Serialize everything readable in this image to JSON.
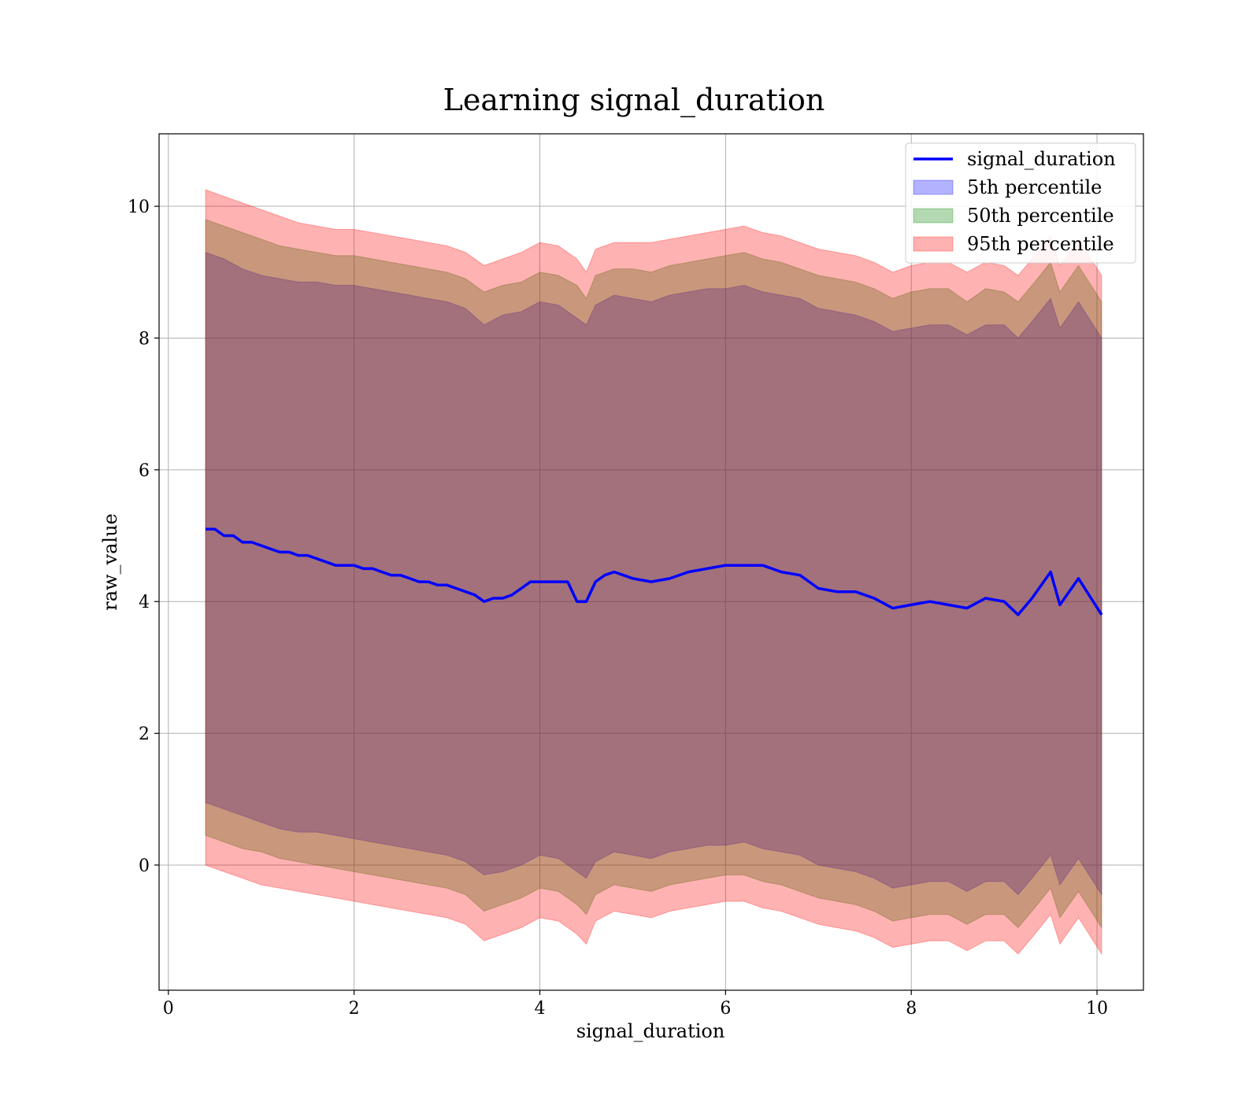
{
  "chart_data": {
    "type": "line",
    "title": "Learning signal_duration",
    "xlabel": "signal_duration",
    "ylabel": "raw_value",
    "xlim": [
      -0.1,
      10.5
    ],
    "ylim": [
      -1.9,
      11.1
    ],
    "xticks": [
      0,
      2,
      4,
      6,
      8,
      10
    ],
    "yticks": [
      0,
      2,
      4,
      6,
      8,
      10
    ],
    "grid": true,
    "legend_position": "top-right",
    "colors": {
      "line": "#0000ff",
      "p5": "#0000ff",
      "p50": "#008000",
      "p95": "#ff0000"
    },
    "legend": [
      "signal_duration",
      "5th percentile",
      "50th percentile",
      "95th percentile"
    ],
    "series": [
      {
        "name": "signal_duration",
        "x": [
          0.4,
          0.5,
          0.6,
          0.7,
          0.8,
          0.9,
          1.0,
          1.1,
          1.2,
          1.3,
          1.4,
          1.5,
          1.6,
          1.7,
          1.8,
          1.9,
          2.0,
          2.1,
          2.2,
          2.3,
          2.4,
          2.5,
          2.6,
          2.7,
          2.8,
          2.9,
          3.0,
          3.1,
          3.2,
          3.3,
          3.4,
          3.5,
          3.6,
          3.7,
          3.8,
          3.9,
          4.0,
          4.1,
          4.2,
          4.3,
          4.4,
          4.5,
          4.6,
          4.7,
          4.8,
          4.9,
          5.0,
          5.2,
          5.4,
          5.6,
          5.8,
          6.0,
          6.2,
          6.4,
          6.6,
          6.8,
          7.0,
          7.2,
          7.4,
          7.6,
          7.8,
          8.0,
          8.2,
          8.4,
          8.6,
          8.8,
          9.0,
          9.15,
          9.3,
          9.5,
          9.6,
          9.8,
          10.05
        ],
        "values": [
          5.1,
          5.1,
          5.0,
          5.0,
          4.9,
          4.9,
          4.85,
          4.8,
          4.75,
          4.75,
          4.7,
          4.7,
          4.65,
          4.6,
          4.55,
          4.55,
          4.55,
          4.5,
          4.5,
          4.45,
          4.4,
          4.4,
          4.35,
          4.3,
          4.3,
          4.25,
          4.25,
          4.2,
          4.15,
          4.1,
          4.0,
          4.05,
          4.05,
          4.1,
          4.2,
          4.3,
          4.3,
          4.3,
          4.3,
          4.3,
          4.0,
          4.0,
          4.3,
          4.4,
          4.45,
          4.4,
          4.35,
          4.3,
          4.35,
          4.45,
          4.5,
          4.55,
          4.55,
          4.55,
          4.45,
          4.4,
          4.2,
          4.15,
          4.15,
          4.05,
          3.9,
          3.95,
          4.0,
          3.95,
          3.9,
          4.05,
          4.0,
          3.8,
          4.05,
          4.45,
          3.95,
          4.35,
          3.8
        ]
      },
      {
        "name": "5th percentile",
        "x": [
          0.4,
          0.6,
          0.8,
          1.0,
          1.2,
          1.4,
          1.6,
          1.8,
          2.0,
          2.2,
          2.4,
          2.6,
          2.8,
          3.0,
          3.2,
          3.4,
          3.6,
          3.8,
          4.0,
          4.2,
          4.4,
          4.5,
          4.6,
          4.8,
          5.0,
          5.2,
          5.4,
          5.6,
          5.8,
          6.0,
          6.2,
          6.4,
          6.6,
          6.8,
          7.0,
          7.2,
          7.4,
          7.6,
          7.8,
          8.0,
          8.2,
          8.4,
          8.6,
          8.8,
          9.0,
          9.15,
          9.3,
          9.5,
          9.6,
          9.8,
          10.05
        ],
        "upper": [
          9.3,
          9.2,
          9.05,
          8.95,
          8.9,
          8.85,
          8.85,
          8.8,
          8.8,
          8.75,
          8.7,
          8.65,
          8.6,
          8.55,
          8.45,
          8.2,
          8.35,
          8.4,
          8.55,
          8.5,
          8.3,
          8.2,
          8.5,
          8.65,
          8.6,
          8.55,
          8.65,
          8.7,
          8.75,
          8.75,
          8.8,
          8.7,
          8.65,
          8.6,
          8.45,
          8.4,
          8.35,
          8.25,
          8.1,
          8.15,
          8.2,
          8.2,
          8.05,
          8.2,
          8.2,
          8.0,
          8.25,
          8.6,
          8.15,
          8.55,
          8.0
        ],
        "lower": [
          0.95,
          0.85,
          0.75,
          0.65,
          0.55,
          0.5,
          0.5,
          0.45,
          0.4,
          0.35,
          0.3,
          0.25,
          0.2,
          0.15,
          0.05,
          -0.15,
          -0.1,
          0.0,
          0.15,
          0.1,
          -0.1,
          -0.2,
          0.05,
          0.2,
          0.15,
          0.1,
          0.2,
          0.25,
          0.3,
          0.3,
          0.35,
          0.25,
          0.2,
          0.15,
          0.0,
          -0.05,
          -0.1,
          -0.2,
          -0.35,
          -0.3,
          -0.25,
          -0.25,
          -0.4,
          -0.25,
          -0.25,
          -0.45,
          -0.2,
          0.15,
          -0.3,
          0.1,
          -0.45
        ]
      },
      {
        "name": "50th percentile",
        "x": [
          0.4,
          0.6,
          0.8,
          1.0,
          1.2,
          1.4,
          1.6,
          1.8,
          2.0,
          2.2,
          2.4,
          2.6,
          2.8,
          3.0,
          3.2,
          3.4,
          3.6,
          3.8,
          4.0,
          4.2,
          4.4,
          4.5,
          4.6,
          4.8,
          5.0,
          5.2,
          5.4,
          5.6,
          5.8,
          6.0,
          6.2,
          6.4,
          6.6,
          6.8,
          7.0,
          7.2,
          7.4,
          7.6,
          7.8,
          8.0,
          8.2,
          8.4,
          8.6,
          8.8,
          9.0,
          9.15,
          9.3,
          9.5,
          9.6,
          9.8,
          10.05
        ],
        "upper": [
          9.8,
          9.7,
          9.6,
          9.5,
          9.4,
          9.35,
          9.3,
          9.25,
          9.25,
          9.2,
          9.15,
          9.1,
          9.05,
          9.0,
          8.9,
          8.7,
          8.8,
          8.85,
          9.0,
          8.95,
          8.8,
          8.6,
          8.95,
          9.05,
          9.05,
          9.0,
          9.1,
          9.15,
          9.2,
          9.25,
          9.3,
          9.2,
          9.15,
          9.05,
          8.95,
          8.9,
          8.85,
          8.75,
          8.6,
          8.7,
          8.75,
          8.75,
          8.55,
          8.75,
          8.7,
          8.55,
          8.8,
          9.15,
          8.7,
          9.1,
          8.55
        ],
        "lower": [
          0.45,
          0.35,
          0.25,
          0.2,
          0.1,
          0.05,
          0.0,
          -0.05,
          -0.1,
          -0.15,
          -0.2,
          -0.25,
          -0.3,
          -0.35,
          -0.45,
          -0.7,
          -0.6,
          -0.5,
          -0.35,
          -0.4,
          -0.6,
          -0.75,
          -0.45,
          -0.3,
          -0.35,
          -0.4,
          -0.3,
          -0.25,
          -0.2,
          -0.15,
          -0.15,
          -0.25,
          -0.3,
          -0.4,
          -0.5,
          -0.55,
          -0.6,
          -0.7,
          -0.85,
          -0.8,
          -0.75,
          -0.75,
          -0.9,
          -0.75,
          -0.75,
          -0.95,
          -0.7,
          -0.35,
          -0.8,
          -0.4,
          -0.95
        ]
      },
      {
        "name": "95th percentile",
        "x": [
          0.4,
          0.6,
          0.8,
          1.0,
          1.2,
          1.4,
          1.6,
          1.8,
          2.0,
          2.2,
          2.4,
          2.6,
          2.8,
          3.0,
          3.2,
          3.4,
          3.6,
          3.8,
          4.0,
          4.2,
          4.4,
          4.5,
          4.6,
          4.8,
          5.0,
          5.2,
          5.4,
          5.6,
          5.8,
          6.0,
          6.2,
          6.4,
          6.6,
          6.8,
          7.0,
          7.2,
          7.4,
          7.6,
          7.8,
          8.0,
          8.2,
          8.4,
          8.6,
          8.8,
          9.0,
          9.15,
          9.3,
          9.5,
          9.6,
          9.8,
          10.05
        ],
        "upper": [
          10.25,
          10.15,
          10.05,
          9.95,
          9.85,
          9.75,
          9.7,
          9.65,
          9.65,
          9.6,
          9.55,
          9.5,
          9.45,
          9.4,
          9.3,
          9.1,
          9.2,
          9.3,
          9.45,
          9.4,
          9.2,
          9.0,
          9.35,
          9.45,
          9.45,
          9.45,
          9.5,
          9.55,
          9.6,
          9.65,
          9.7,
          9.6,
          9.55,
          9.45,
          9.35,
          9.3,
          9.25,
          9.15,
          9.0,
          9.1,
          9.15,
          9.15,
          9.0,
          9.15,
          9.1,
          8.95,
          9.2,
          9.55,
          9.1,
          9.5,
          8.95
        ],
        "lower": [
          0.0,
          -0.1,
          -0.2,
          -0.3,
          -0.35,
          -0.4,
          -0.45,
          -0.5,
          -0.55,
          -0.6,
          -0.65,
          -0.7,
          -0.75,
          -0.8,
          -0.9,
          -1.15,
          -1.05,
          -0.95,
          -0.8,
          -0.85,
          -1.05,
          -1.2,
          -0.85,
          -0.7,
          -0.75,
          -0.8,
          -0.7,
          -0.65,
          -0.6,
          -0.55,
          -0.55,
          -0.65,
          -0.7,
          -0.8,
          -0.9,
          -0.95,
          -1.0,
          -1.1,
          -1.25,
          -1.2,
          -1.15,
          -1.15,
          -1.3,
          -1.15,
          -1.15,
          -1.35,
          -1.1,
          -0.75,
          -1.2,
          -0.8,
          -1.35
        ]
      }
    ]
  }
}
